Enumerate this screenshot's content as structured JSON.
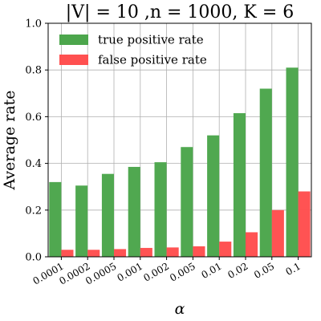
{
  "chart_data": {
    "type": "bar",
    "title": "|V| = 10 ,n = 1000, K = 6",
    "xlabel": "α",
    "ylabel": "Average rate",
    "ylim": [
      0,
      1.0
    ],
    "yticks": [
      "0.0",
      "0.2",
      "0.4",
      "0.6",
      "0.8",
      "1.0"
    ],
    "categories": [
      "0.0001",
      "0.0002",
      "0.0005",
      "0.001",
      "0.002",
      "0.005",
      "0.01",
      "0.02",
      "0.05",
      "0.1"
    ],
    "grid": true,
    "legend_position": "top-left",
    "series": [
      {
        "name": "true positive rate",
        "color": "#4ca64c",
        "values": [
          0.32,
          0.305,
          0.355,
          0.385,
          0.405,
          0.47,
          0.52,
          0.615,
          0.72,
          0.81
        ]
      },
      {
        "name": "false positive rate",
        "color": "#ff5050",
        "values": [
          0.03,
          0.03,
          0.033,
          0.038,
          0.04,
          0.045,
          0.065,
          0.105,
          0.2,
          0.28
        ]
      }
    ]
  }
}
